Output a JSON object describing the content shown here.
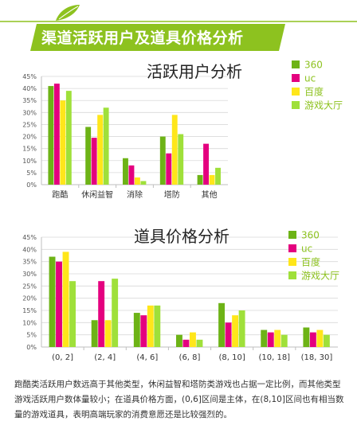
{
  "page": {
    "title": "渠道活跃用户及道具价格分析",
    "summary": "跑酷类活跃用户数远高于其他类型，休闲益智和塔防类游戏也占据一定比例，而其他类型游戏活跃用户数体量较小；在道具价格方面，(0,6]区间是主体，在(8,10]区间也有相当数量的游戏道具，表明高端玩家的消费意愿还是比较强烈的。"
  },
  "colors": {
    "banner": "#8DC21F",
    "brand_dark": "#5C9A1B",
    "legend_text": "#8DC21F"
  },
  "chart_data": [
    {
      "type": "bar",
      "title": "活跃用户分析",
      "categories": [
        "跑酷",
        "休闲益智",
        "消除",
        "塔防",
        "其他"
      ],
      "ylim": [
        0,
        45
      ],
      "yticks": [
        "0%",
        "5%",
        "10%",
        "15%",
        "20%",
        "25%",
        "30%",
        "35%",
        "40%",
        "45%"
      ],
      "grid": true,
      "legend_position": "top-right",
      "series": [
        {
          "name": "360",
          "color": "#6DB316",
          "values": [
            41,
            24,
            11,
            20,
            4
          ]
        },
        {
          "name": "uc",
          "color": "#E4007F",
          "values": [
            42,
            19.5,
            8,
            13,
            17
          ]
        },
        {
          "name": "百度",
          "color": "#FFE61A",
          "values": [
            35,
            29,
            3,
            29,
            4
          ]
        },
        {
          "name": "游戏大厅",
          "color": "#9FE03A",
          "values": [
            39,
            32,
            1.5,
            21,
            7
          ]
        }
      ]
    },
    {
      "type": "bar",
      "title": "道具价格分析",
      "categories": [
        "(0, 2]",
        "(2, 4]",
        "(4, 6]",
        "(6, 8]",
        "(8, 10]",
        "(10, 18]",
        "(18, 30]"
      ],
      "ylim": [
        0,
        45
      ],
      "yticks": [
        "0%",
        "5%",
        "10%",
        "15%",
        "20%",
        "25%",
        "30%",
        "35%",
        "40%",
        "45%"
      ],
      "grid": true,
      "legend_position": "top-right",
      "series": [
        {
          "name": "360",
          "color": "#6DB316",
          "values": [
            37,
            11,
            14,
            5,
            18,
            7,
            8
          ]
        },
        {
          "name": "uc",
          "color": "#E4007F",
          "values": [
            35,
            27,
            13,
            3,
            10,
            6,
            6
          ]
        },
        {
          "name": "百度",
          "color": "#FFE61A",
          "values": [
            39,
            11,
            17,
            6,
            13,
            7,
            7
          ]
        },
        {
          "name": "游戏大厅",
          "color": "#9FE03A",
          "values": [
            27,
            28,
            17,
            3,
            15,
            5,
            5
          ]
        }
      ]
    }
  ]
}
